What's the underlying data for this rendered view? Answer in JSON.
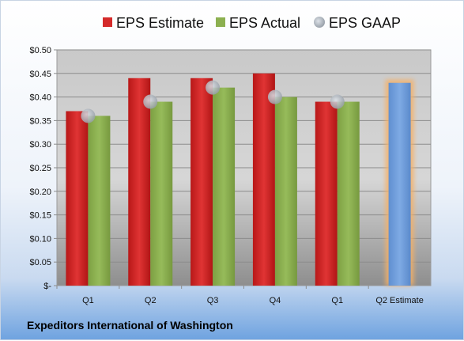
{
  "company": "Expeditors International of Washington",
  "chart_data": {
    "type": "bar",
    "categories": [
      "Q1",
      "Q2",
      "Q3",
      "Q4",
      "Q1",
      "Q2 Estimate"
    ],
    "ylim": [
      0,
      0.5
    ],
    "yticks": [
      0,
      0.05,
      0.1,
      0.15,
      0.2,
      0.25,
      0.3,
      0.35,
      0.4,
      0.45,
      0.5
    ],
    "ytick_labels": [
      "$-",
      "$0.05",
      "$0.10",
      "$0.15",
      "$0.20",
      "$0.25",
      "$0.30",
      "$0.35",
      "$0.40",
      "$0.45",
      "$0.50"
    ],
    "grid": true,
    "legend_position": "top",
    "series": [
      {
        "name": "EPS Estimate",
        "color": "#d42a2a",
        "values": [
          0.37,
          0.44,
          0.44,
          0.45,
          0.39,
          null
        ]
      },
      {
        "name": "EPS Actual",
        "color": "#8cb050",
        "values": [
          0.36,
          0.39,
          0.42,
          0.4,
          0.39,
          null
        ]
      },
      {
        "name": "EPS GAAP",
        "color": "#b8c0c8",
        "values": [
          0.36,
          0.39,
          0.42,
          0.4,
          0.39,
          null
        ]
      }
    ],
    "forecast": {
      "category": "Q2 Estimate",
      "value": 0.43,
      "color": "#6f9edc",
      "glow": "#f5b066"
    }
  }
}
